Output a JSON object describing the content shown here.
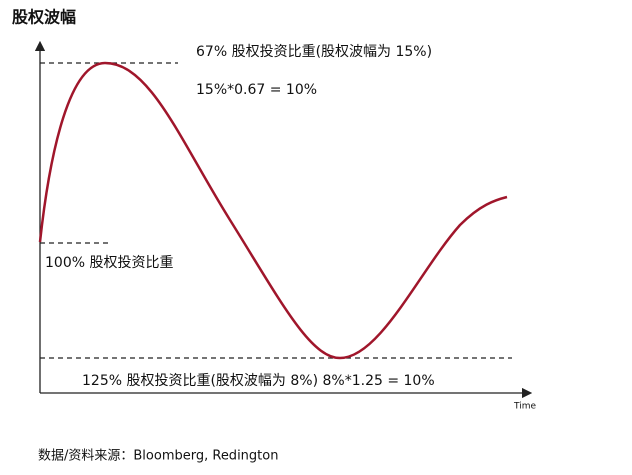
{
  "y_axis_label": "股权波幅",
  "annotations": {
    "top_label": "67% 股权投资比重(股权波幅为 15%)",
    "top_formula": "15%*0.67 = 10%",
    "mid_label": "100% 股权投资比重",
    "bottom_label": "125% 股权投资比重(股权波幅为 8%)  8%*1.25 = 10%"
  },
  "x_axis_label": "Time",
  "source": "数据/资料来源：Bloomberg, Redington"
}
